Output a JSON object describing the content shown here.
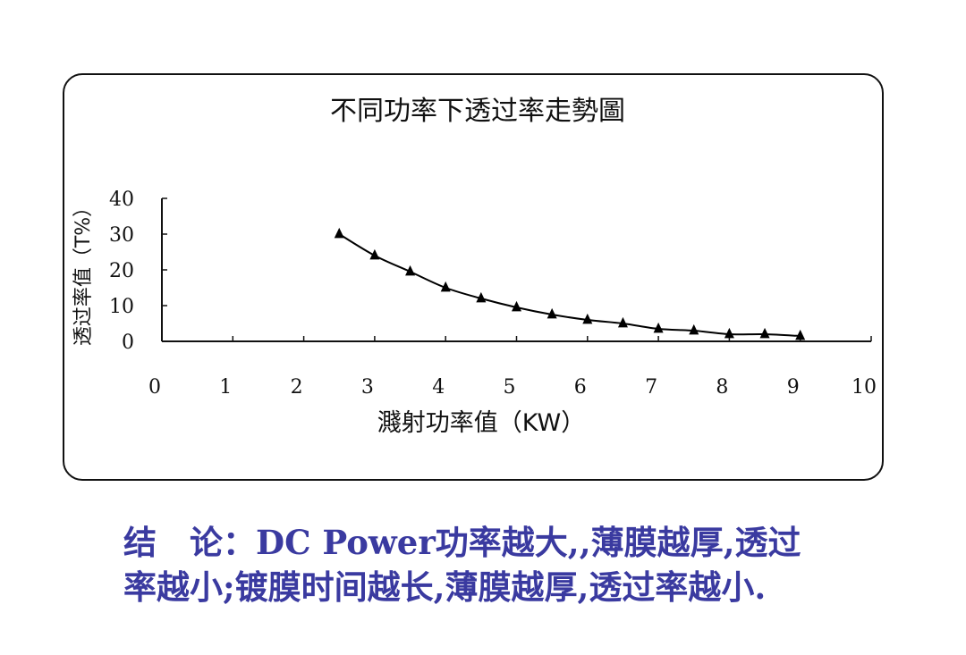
{
  "chart_data": {
    "type": "line",
    "title": "不同功率下透过率走勢圖",
    "xlabel": "濺射功率值（KW）",
    "ylabel": "透过率值（T%）",
    "xlim": [
      0,
      10
    ],
    "ylim": [
      0,
      40
    ],
    "x_ticks": [
      "0",
      "1",
      "2",
      "3",
      "4",
      "5",
      "6",
      "7",
      "8",
      "9",
      "10"
    ],
    "y_ticks": [
      "0",
      "10",
      "20",
      "30",
      "40"
    ],
    "series": [
      {
        "marker": "triangle",
        "color": "#000000",
        "x": [
          2.5,
          3,
          3.5,
          4,
          4.5,
          5,
          5.5,
          6,
          6.5,
          7,
          7.5,
          8,
          8.5,
          9
        ],
        "y": [
          30,
          24,
          19.5,
          15,
          12,
          9.5,
          7.5,
          6,
          5,
          3.5,
          3,
          2,
          2,
          1.5
        ]
      }
    ],
    "grid": false,
    "legend": "none"
  },
  "conclusion": {
    "line1": "结　论：DC Power功率越大,,薄膜越厚,透过",
    "line2": "率越小;镀膜时间越长,薄膜越厚,透过率越小.",
    "color": "#3a3aa0"
  }
}
